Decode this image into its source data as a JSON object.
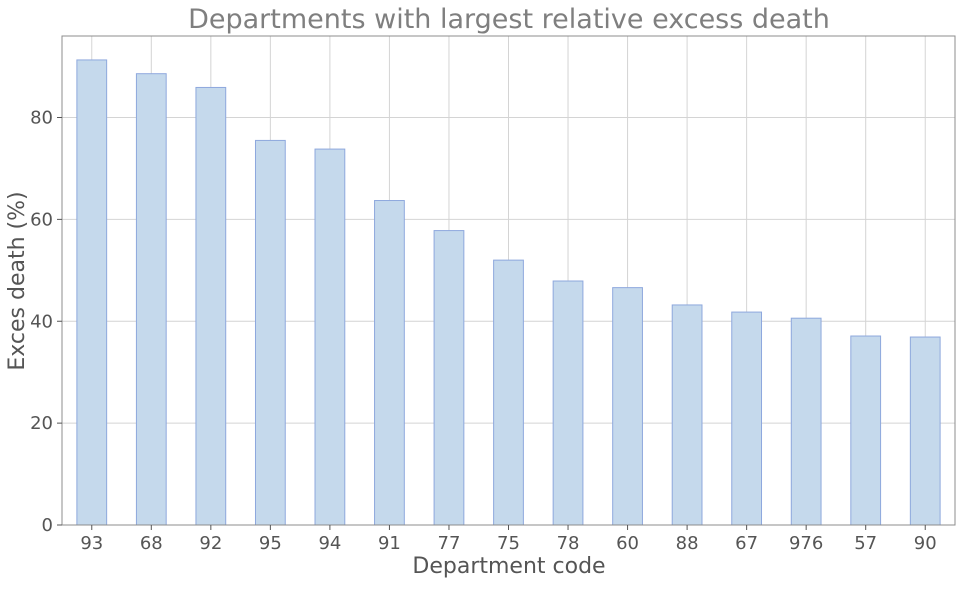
{
  "chart_data": {
    "type": "bar",
    "title": "Departments with largest relative excess death",
    "xlabel": "Department code",
    "ylabel": "Exces death (%)",
    "categories": [
      "93",
      "68",
      "92",
      "95",
      "94",
      "91",
      "77",
      "75",
      "78",
      "60",
      "88",
      "67",
      "976",
      "57",
      "90"
    ],
    "values": [
      91.3,
      88.6,
      85.9,
      75.5,
      73.8,
      63.7,
      57.8,
      52.0,
      47.9,
      46.6,
      43.2,
      41.8,
      40.6,
      37.1,
      36.9
    ],
    "ylim": [
      0,
      96
    ],
    "yticks": [
      "0",
      "20",
      "40",
      "60",
      "80"
    ],
    "grid": true,
    "bar_color": "#c5d9ec",
    "bar_edge_color": "#8ea8dd"
  }
}
